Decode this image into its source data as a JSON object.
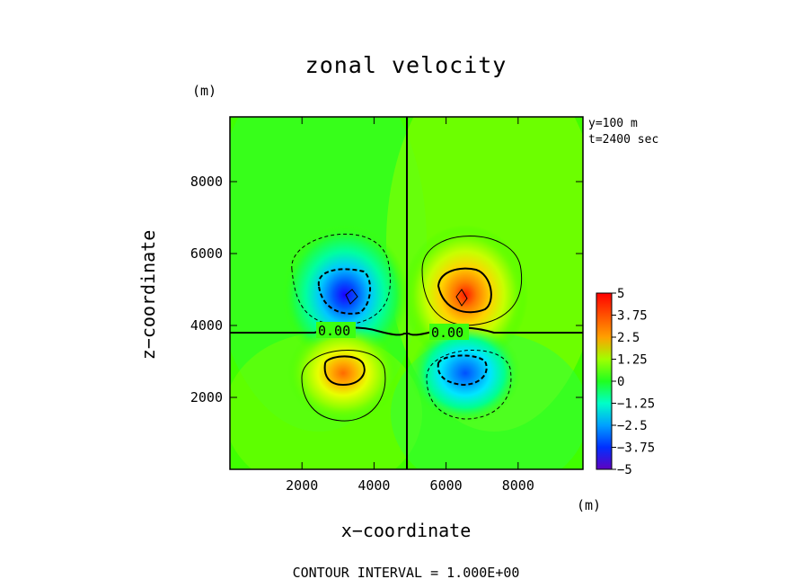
{
  "chart_data": {
    "type": "heatmap",
    "title": "zonal velocity",
    "xlabel": "x−coordinate",
    "ylabel": "z−coordinate",
    "x_unit": "(m)",
    "y_unit": "(m)",
    "xlim": [
      0,
      9800
    ],
    "ylim": [
      0,
      9800
    ],
    "xticks": [
      "2000",
      "4000",
      "6000",
      "8000"
    ],
    "yticks": [
      "2000",
      "4000",
      "6000",
      "8000"
    ],
    "annotations": [
      "y=100 m",
      "t=2400 sec"
    ],
    "contour_labels": [
      "0.00",
      "0.00"
    ],
    "footer": "CONTOUR INTERVAL = 1.000E+00",
    "colorbar": {
      "min": -5,
      "max": 5,
      "tick_labels": [
        "5",
        "3.75",
        "2.5",
        "1.25",
        "0",
        "−1.25",
        "−2.5",
        "−3.75",
        "−5"
      ]
    },
    "extrema": [
      {
        "x": 3500,
        "z": 4850,
        "value": -3.5
      },
      {
        "x": 6500,
        "z": 4850,
        "value": 3.5
      },
      {
        "x": 3500,
        "z": 2900,
        "value": 2.5
      },
      {
        "x": 6500,
        "z": 2900,
        "value": -2.5
      }
    ],
    "colors": {
      "background_field": "#40ff00",
      "contour_line": "#000000"
    }
  }
}
